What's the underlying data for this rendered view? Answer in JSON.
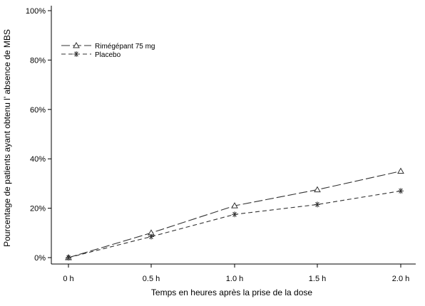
{
  "chart_data": {
    "type": "line",
    "title": "",
    "xlabel": "Temps en heures après la prise de la dose",
    "ylabel": "Pourcentage de patients ayant obtenu l’ absence de MBS",
    "categories": [
      "0 h",
      "0.5 h",
      "1.0 h",
      "1.5 h",
      "2.0 h"
    ],
    "y_ticks": [
      "0%",
      "20%",
      "40%",
      "60%",
      "80%",
      "100%"
    ],
    "ylim": [
      0,
      100
    ],
    "grid": false,
    "legend_position": "top-left",
    "series": [
      {
        "name": "Rimégépant 75 mg",
        "values": [
          0,
          10,
          21,
          27.5,
          35
        ],
        "marker": "triangle-icon",
        "line_style": "long-dash",
        "color": "#333333"
      },
      {
        "name": "Placebo",
        "values": [
          0,
          8.5,
          17.5,
          21.5,
          27
        ],
        "marker": "asterisk-icon",
        "line_style": "dash",
        "color": "#333333"
      }
    ]
  }
}
